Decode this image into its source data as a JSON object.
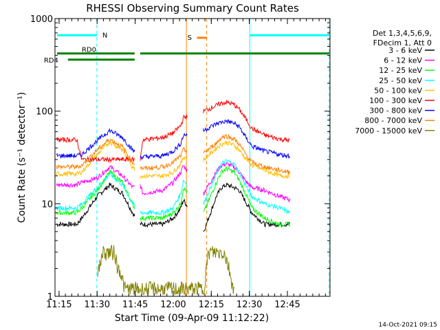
{
  "chart_data": {
    "type": "line",
    "title": "RHESSI Observing Summary Count Rates",
    "xlabel": "Start Time (09-Apr-09 11:12:22)",
    "ylabel": "Count Rate (s⁻¹ detector⁻¹)",
    "y_scale": "log",
    "ylim": [
      1,
      1000
    ],
    "xlim_minutes": [
      673.4,
      781.8
    ],
    "x_ticks": [
      {
        "t": 675,
        "label": "11:15"
      },
      {
        "t": 690,
        "label": "11:30"
      },
      {
        "t": 705,
        "label": "11:45"
      },
      {
        "t": 720,
        "label": "12:00"
      },
      {
        "t": 735,
        "label": "12:15"
      },
      {
        "t": 750,
        "label": "12:30"
      },
      {
        "t": 765,
        "label": "12:45"
      }
    ],
    "y_ticks": [
      {
        "v": 1,
        "label": "1"
      },
      {
        "v": 10,
        "label": "10"
      },
      {
        "v": 100,
        "label": "100"
      },
      {
        "v": 1000,
        "label": "1000"
      }
    ],
    "legend_header": [
      "Det 1,3,4,5,6,9,",
      "FDecim 1, Att 0"
    ],
    "legend_placement": "right",
    "series": [
      {
        "name": "3 - 6 keV",
        "color": "#000000",
        "t": [
          674,
          682,
          684,
          690,
          695,
          700,
          704,
          707,
          708,
          716,
          720,
          723,
          724,
          732,
          737,
          739,
          741,
          744,
          746,
          749,
          751,
          756,
          762,
          766
        ],
        "v": [
          6,
          6,
          7,
          12,
          16,
          13,
          8,
          6,
          6,
          6,
          7,
          9,
          11,
          5,
          12,
          15,
          16,
          15,
          14,
          10,
          8,
          6,
          6,
          6
        ]
      },
      {
        "name": "6 - 12 keV",
        "color": "#ff00ff",
        "t": [
          674,
          682,
          684,
          690,
          695,
          700,
          704,
          707,
          708,
          716,
          720,
          723,
          724,
          732,
          737,
          739,
          741,
          744,
          746,
          749,
          751,
          756,
          762,
          766
        ],
        "v": [
          16,
          16,
          17,
          19,
          25,
          20,
          15,
          16,
          13,
          14,
          17,
          22,
          26,
          13,
          22,
          26,
          27,
          25,
          22,
          17,
          15,
          14,
          12,
          11
        ]
      },
      {
        "name": "12 - 25 keV",
        "color": "#00ff00",
        "t": [
          674,
          682,
          684,
          690,
          695,
          700,
          704,
          707,
          708,
          716,
          720,
          723,
          724,
          732,
          737,
          739,
          741,
          744,
          746,
          749,
          751,
          756,
          762,
          766
        ],
        "v": [
          8,
          8,
          9,
          14,
          22,
          17,
          10,
          7,
          7,
          7,
          8,
          10,
          15,
          8,
          17,
          22,
          24,
          22,
          18,
          12,
          9,
          7,
          6,
          6
        ]
      },
      {
        "name": "25 - 50 keV",
        "color": "#00ffff",
        "t": [
          674,
          682,
          684,
          690,
          695,
          700,
          704,
          707,
          708,
          716,
          720,
          723,
          724,
          732,
          737,
          739,
          741,
          744,
          746,
          749,
          751,
          756,
          762,
          766
        ],
        "v": [
          9,
          9,
          10,
          15,
          21,
          16,
          10,
          8,
          8,
          8,
          9,
          13,
          18,
          10,
          21,
          27,
          29,
          27,
          22,
          15,
          12,
          10,
          9,
          8
        ]
      },
      {
        "name": "50 - 100 keV",
        "color": "#ffbf00",
        "t": [
          674,
          682,
          684,
          690,
          695,
          700,
          704,
          707,
          708,
          716,
          720,
          723,
          724,
          732,
          737,
          739,
          741,
          744,
          746,
          749,
          751,
          756,
          762,
          766
        ],
        "v": [
          21,
          21,
          22,
          34,
          47,
          38,
          25,
          20,
          20,
          20,
          22,
          27,
          32,
          30,
          40,
          44,
          46,
          43,
          38,
          30,
          26,
          23,
          20,
          20
        ]
      },
      {
        "name": "100 - 300 keV",
        "color": "#ff0000",
        "t": [
          674,
          682,
          684,
          690,
          695,
          700,
          704,
          707,
          708,
          716,
          720,
          723,
          724,
          732,
          737,
          739,
          741,
          744,
          746,
          749,
          751,
          756,
          762,
          766
        ],
        "v": [
          49,
          49,
          30,
          30,
          30,
          30,
          30,
          30,
          49,
          52,
          58,
          70,
          85,
          100,
          115,
          122,
          125,
          118,
          105,
          80,
          65,
          55,
          50,
          48
        ]
      },
      {
        "name": "300 - 800 keV",
        "color": "#0000ff",
        "t": [
          674,
          682,
          684,
          690,
          695,
          700,
          704,
          707,
          708,
          716,
          720,
          723,
          724,
          732,
          737,
          739,
          741,
          744,
          746,
          749,
          751,
          756,
          762,
          766
        ],
        "v": [
          33,
          33,
          34,
          48,
          62,
          52,
          38,
          32,
          32,
          33,
          37,
          45,
          55,
          62,
          73,
          76,
          78,
          74,
          68,
          50,
          42,
          37,
          34,
          33
        ]
      },
      {
        "name": "800 - 7000 keV",
        "color": "#ff8000",
        "t": [
          674,
          682,
          684,
          690,
          695,
          700,
          704,
          707,
          708,
          716,
          720,
          723,
          724,
          732,
          737,
          739,
          741,
          744,
          746,
          749,
          751,
          756,
          762,
          766
        ],
        "v": [
          25,
          25,
          26,
          38,
          50,
          41,
          28,
          25,
          24,
          25,
          28,
          33,
          38,
          35,
          45,
          52,
          54,
          50,
          44,
          33,
          28,
          25,
          23,
          22
        ]
      },
      {
        "name": "7000 - 15000 keV",
        "color": "#808000",
        "t": [
          690,
          691,
          692,
          694,
          696,
          697,
          698,
          699,
          700,
          701,
          732,
          733,
          734,
          736,
          738,
          740,
          741,
          742,
          743,
          744
        ],
        "v": [
          2,
          2,
          3,
          3,
          3,
          3,
          2,
          2,
          1.5,
          1.2,
          1.2,
          2,
          3,
          3,
          3,
          3,
          2.5,
          2,
          1.5,
          1.2
        ]
      }
    ],
    "flags": [
      {
        "name": "N",
        "color": "#00ffff",
        "y": 660,
        "segments": [
          [
            674.2,
            689.9
          ],
          [
            750.2,
            781.5
          ]
        ]
      },
      {
        "name": "S",
        "color": "#ff8000",
        "y": 620,
        "segments": [
          [
            729.4,
            733.2
          ]
        ]
      },
      {
        "name": "RD0",
        "color": "#008000",
        "y": 420,
        "segments": [
          [
            674.2,
            704.8
          ],
          [
            707.0,
            781.5
          ]
        ]
      },
      {
        "name": "RD4",
        "color": "#008000",
        "y": 360,
        "segments": [
          [
            678.5,
            704.8
          ]
        ]
      }
    ],
    "vlines": [
      {
        "t": 689.9,
        "color": "#00ffff",
        "dash": true
      },
      {
        "t": 725.2,
        "color": "#ff8000",
        "dash": false
      },
      {
        "t": 733.2,
        "color": "#ff8000",
        "dash": true
      },
      {
        "t": 750.2,
        "color": "#00ffff",
        "dash": false
      },
      {
        "t": 781.5,
        "color": "#00ffff",
        "dash": true
      }
    ]
  },
  "footer": {
    "date_stamp": "14-Oct-2021 09:15"
  }
}
